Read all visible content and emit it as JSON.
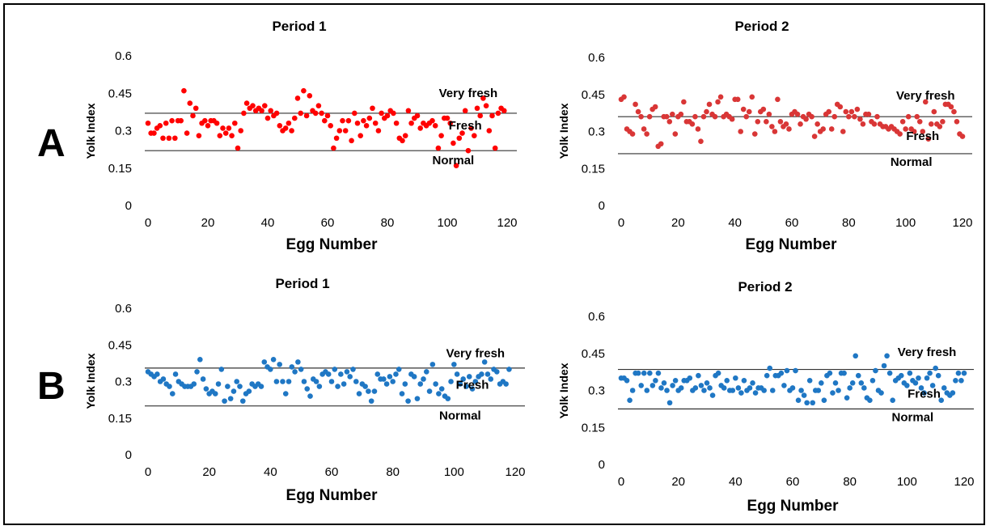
{
  "row_labels": [
    "A",
    "B"
  ],
  "chart_data": [
    {
      "type": "scatter",
      "row": "A",
      "title": "Period 1",
      "xlabel": "Egg Number",
      "ylabel": "Yolk Index",
      "xlim": [
        0,
        120
      ],
      "ylim": [
        0,
        0.6
      ],
      "xticks": [
        "0",
        "20",
        "40",
        "60",
        "80",
        "100",
        "120"
      ],
      "yticks": [
        "0",
        "0.15",
        "0.3",
        "0.45",
        "0.6"
      ],
      "color": "#ff0000",
      "thresholds": [
        0.37,
        0.22
      ],
      "annotations": [
        {
          "text": "Very fresh",
          "x": 107,
          "y": 0.435
        },
        {
          "text": "Fresh",
          "x": 106,
          "y": 0.305
        },
        {
          "text": "Normal",
          "x": 102,
          "y": 0.165
        }
      ],
      "series": [
        {
          "values": [
            0.33,
            0.29,
            0.29,
            0.31,
            0.32,
            0.27,
            0.33,
            0.27,
            0.34,
            0.27,
            0.34,
            0.34,
            0.46,
            0.29,
            0.41,
            0.36,
            0.39,
            0.28,
            0.33,
            0.34,
            0.32,
            0.34,
            0.34,
            0.33,
            0.28,
            0.31,
            0.29,
            0.31,
            0.28,
            0.33,
            0.23,
            0.3,
            0.37,
            0.41,
            0.39,
            0.4,
            0.38,
            0.39,
            0.38,
            0.4,
            0.35,
            0.38,
            0.36,
            0.37,
            0.32,
            0.3,
            0.31,
            0.33,
            0.3,
            0.35,
            0.43,
            0.37,
            0.46,
            0.36,
            0.44,
            0.38,
            0.37,
            0.4,
            0.37,
            0.34,
            0.36,
            0.32,
            0.23,
            0.27,
            0.3,
            0.34,
            0.3,
            0.34,
            0.26,
            0.37,
            0.33,
            0.28,
            0.34,
            0.32,
            0.35,
            0.39,
            0.33,
            0.3,
            0.37,
            0.35,
            0.36,
            0.38,
            0.37,
            0.33,
            0.27,
            0.26,
            0.28,
            0.38,
            0.33,
            0.35,
            0.36,
            0.31,
            0.33,
            0.32,
            0.33,
            0.34,
            0.32,
            0.23,
            0.28,
            0.35,
            0.35,
            0.33,
            0.25,
            0.16,
            0.27,
            0.29,
            0.38,
            0.22,
            0.31,
            0.28,
            0.39,
            0.36,
            0.43,
            0.4,
            0.3,
            0.36,
            0.23,
            0.37,
            0.39,
            0.38
          ]
        }
      ]
    },
    {
      "type": "scatter",
      "row": "A",
      "title": "Period 2",
      "xlabel": "Egg Number",
      "ylabel": "Yolk Index",
      "xlim": [
        0,
        120
      ],
      "ylim": [
        0,
        0.6
      ],
      "xticks": [
        "0",
        "20",
        "40",
        "60",
        "80",
        "100",
        "120"
      ],
      "yticks": [
        "0",
        "0.15",
        "0.3",
        "0.45",
        "0.6"
      ],
      "color": "#d93636",
      "thresholds": [
        0.36,
        0.21
      ],
      "annotations": [
        {
          "text": "Very fresh",
          "x": 107,
          "y": 0.43
        },
        {
          "text": "Fresh",
          "x": 106,
          "y": 0.265
        },
        {
          "text": "Normal",
          "x": 102,
          "y": 0.16
        }
      ],
      "series": [
        {
          "values": [
            0.43,
            0.44,
            0.31,
            0.3,
            0.29,
            0.41,
            0.38,
            0.36,
            0.31,
            0.29,
            0.36,
            0.39,
            0.4,
            0.24,
            0.25,
            0.36,
            0.36,
            0.34,
            0.37,
            0.29,
            0.36,
            0.37,
            0.42,
            0.34,
            0.34,
            0.33,
            0.36,
            0.31,
            0.26,
            0.36,
            0.38,
            0.41,
            0.37,
            0.36,
            0.42,
            0.44,
            0.36,
            0.37,
            0.36,
            0.35,
            0.43,
            0.43,
            0.3,
            0.39,
            0.36,
            0.38,
            0.44,
            0.29,
            0.34,
            0.38,
            0.39,
            0.34,
            0.37,
            0.32,
            0.3,
            0.43,
            0.34,
            0.32,
            0.33,
            0.31,
            0.37,
            0.38,
            0.37,
            0.33,
            0.36,
            0.35,
            0.37,
            0.36,
            0.28,
            0.33,
            0.3,
            0.31,
            0.37,
            0.38,
            0.31,
            0.36,
            0.41,
            0.4,
            0.3,
            0.38,
            0.36,
            0.38,
            0.36,
            0.39,
            0.35,
            0.33,
            0.37,
            0.37,
            0.34,
            0.33,
            0.36,
            0.33,
            0.32,
            0.32,
            0.31,
            0.32,
            0.31,
            0.3,
            0.29,
            0.34,
            0.31,
            0.36,
            0.31,
            0.3,
            0.36,
            0.34,
            0.3,
            0.42,
            0.27,
            0.33,
            0.38,
            0.33,
            0.32,
            0.34,
            0.41,
            0.41,
            0.4,
            0.38,
            0.34,
            0.29,
            0.28
          ]
        }
      ]
    },
    {
      "type": "scatter",
      "row": "B",
      "title": "Period 1",
      "xlabel": "Egg Number",
      "ylabel": "Yolk Index",
      "xlim": [
        0,
        120
      ],
      "ylim": [
        0,
        0.6
      ],
      "xticks": [
        "0",
        "20",
        "40",
        "60",
        "80",
        "100",
        "120"
      ],
      "yticks": [
        "0",
        "0.15",
        "0.3",
        "0.45",
        "0.6"
      ],
      "color": "#1f77c4",
      "thresholds": [
        0.355,
        0.2
      ],
      "annotations": [
        {
          "text": "Very fresh",
          "x": 107,
          "y": 0.4
        },
        {
          "text": "Fresh",
          "x": 106,
          "y": 0.27
        },
        {
          "text": "Normal",
          "x": 102,
          "y": 0.145
        }
      ],
      "series": [
        {
          "values": [
            0.34,
            0.33,
            0.32,
            0.33,
            0.3,
            0.31,
            0.29,
            0.28,
            0.25,
            0.33,
            0.3,
            0.29,
            0.28,
            0.28,
            0.28,
            0.29,
            0.34,
            0.39,
            0.31,
            0.27,
            0.25,
            0.26,
            0.25,
            0.29,
            0.35,
            0.22,
            0.28,
            0.23,
            0.26,
            0.3,
            0.28,
            0.22,
            0.25,
            0.26,
            0.29,
            0.28,
            0.29,
            0.28,
            0.38,
            0.36,
            0.35,
            0.39,
            0.3,
            0.37,
            0.3,
            0.25,
            0.3,
            0.36,
            0.34,
            0.38,
            0.35,
            0.3,
            0.27,
            0.24,
            0.31,
            0.3,
            0.28,
            0.33,
            0.34,
            0.33,
            0.3,
            0.35,
            0.28,
            0.33,
            0.29,
            0.34,
            0.32,
            0.35,
            0.3,
            0.25,
            0.29,
            0.28,
            0.26,
            0.22,
            0.26,
            0.33,
            0.31,
            0.31,
            0.29,
            0.32,
            0.3,
            0.33,
            0.35,
            0.25,
            0.29,
            0.22,
            0.33,
            0.32,
            0.23,
            0.29,
            0.31,
            0.34,
            0.26,
            0.37,
            0.29,
            0.25,
            0.27,
            0.24,
            0.23,
            0.3,
            0.37,
            0.33,
            0.29,
            0.31,
            0.28,
            0.32,
            0.27,
            0.3,
            0.32,
            0.33,
            0.38,
            0.33,
            0.31,
            0.35,
            0.34,
            0.29,
            0.3,
            0.29,
            0.35
          ]
        }
      ]
    },
    {
      "type": "scatter",
      "row": "B",
      "title": "Period 2",
      "xlabel": "Egg Number",
      "ylabel": "Yolk Index",
      "xlim": [
        0,
        120
      ],
      "ylim": [
        0,
        0.6
      ],
      "xticks": [
        "0",
        "20",
        "40",
        "60",
        "80",
        "100",
        "120"
      ],
      "yticks": [
        "0",
        "0.15",
        "0.3",
        "0.45",
        "0.6"
      ],
      "color": "#1f77c4",
      "thresholds": [
        0.385,
        0.225
      ],
      "annotations": [
        {
          "text": "Very fresh",
          "x": 107,
          "y": 0.44
        },
        {
          "text": "Fresh",
          "x": 106,
          "y": 0.27
        },
        {
          "text": "Normal",
          "x": 102,
          "y": 0.175
        }
      ],
      "series": [
        {
          "values": [
            0.35,
            0.35,
            0.34,
            0.26,
            0.3,
            0.37,
            0.37,
            0.32,
            0.37,
            0.3,
            0.37,
            0.32,
            0.34,
            0.37,
            0.31,
            0.33,
            0.3,
            0.25,
            0.32,
            0.34,
            0.3,
            0.31,
            0.34,
            0.34,
            0.35,
            0.3,
            0.31,
            0.36,
            0.32,
            0.3,
            0.33,
            0.31,
            0.28,
            0.36,
            0.37,
            0.32,
            0.31,
            0.34,
            0.3,
            0.3,
            0.35,
            0.31,
            0.29,
            0.34,
            0.3,
            0.31,
            0.33,
            0.29,
            0.31,
            0.31,
            0.3,
            0.36,
            0.39,
            0.3,
            0.36,
            0.36,
            0.37,
            0.32,
            0.38,
            0.3,
            0.31,
            0.38,
            0.26,
            0.3,
            0.28,
            0.25,
            0.34,
            0.25,
            0.3,
            0.3,
            0.33,
            0.26,
            0.36,
            0.37,
            0.29,
            0.33,
            0.3,
            0.37,
            0.37,
            0.27,
            0.31,
            0.33,
            0.44,
            0.36,
            0.33,
            0.31,
            0.27,
            0.26,
            0.34,
            0.38,
            0.3,
            0.29,
            0.4,
            0.44,
            0.37,
            0.26,
            0.34,
            0.35,
            0.36,
            0.33,
            0.32,
            0.37,
            0.34,
            0.33,
            0.35,
            0.31,
            0.29,
            0.35,
            0.37,
            0.32,
            0.39,
            0.36,
            0.26,
            0.31,
            0.29,
            0.28,
            0.29,
            0.34,
            0.37,
            0.34,
            0.37
          ]
        }
      ]
    }
  ]
}
